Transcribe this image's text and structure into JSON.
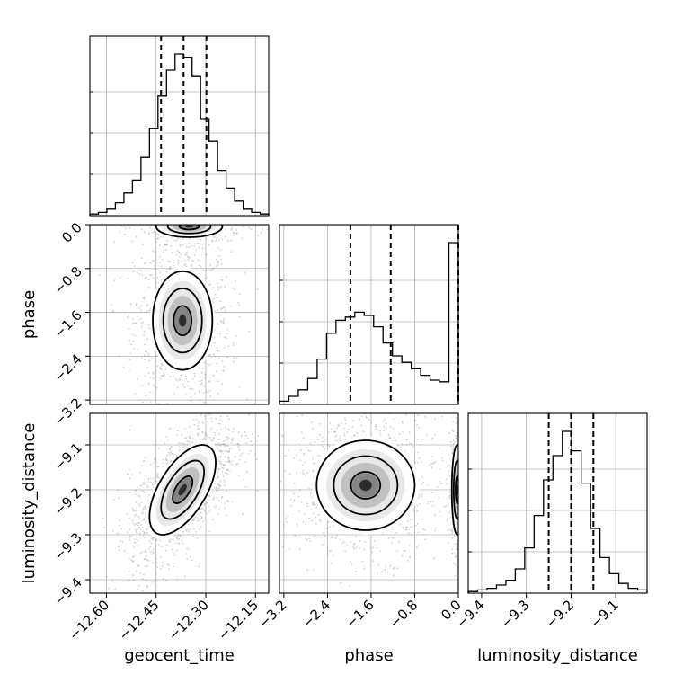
{
  "chart_data": {
    "type": "corner",
    "parameters": [
      "geocent_time",
      "phase",
      "luminosity_distance"
    ],
    "ranges": {
      "geocent_time": [
        -12.65,
        -12.11
      ],
      "phase": [
        -3.28,
        0.0
      ],
      "luminosity_distance": [
        -9.43,
        -9.03
      ]
    },
    "ticks": {
      "geocent_time": [
        "-12.60",
        "-12.45",
        "-12.30",
        "-12.15"
      ],
      "phase_x": [
        "-3.2",
        "-2.4",
        "-1.6",
        "-0.8",
        "0.0"
      ],
      "phase_y": [
        "0.0",
        "-0.8",
        "-1.6",
        "-2.4",
        "-3.2"
      ],
      "luminosity_distance_x": [
        "-9.4",
        "-9.3",
        "-9.2",
        "-9.1"
      ],
      "luminosity_distance_y": [
        "-9.1",
        "-9.2",
        "-9.3",
        "-9.4"
      ]
    },
    "tick_values": {
      "geocent_time": [
        -12.6,
        -12.45,
        -12.3,
        -12.15
      ],
      "phase": [
        -3.2,
        -2.4,
        -1.6,
        -0.8,
        0.0
      ],
      "luminosity_distance": [
        -9.4,
        -9.3,
        -9.2,
        -9.1
      ]
    },
    "quantiles": {
      "geocent_time": [
        -12.435,
        -12.367,
        -12.298
      ],
      "phase": [
        -1.98,
        -1.24,
        0.0
      ],
      "luminosity_distance": [
        -9.25,
        -9.2,
        -9.15
      ]
    },
    "histograms": {
      "geocent_time": [
        1,
        2,
        4,
        8,
        14,
        22,
        36,
        54,
        74,
        90,
        100,
        98,
        86,
        60,
        46,
        28,
        17,
        9,
        4,
        2,
        1
      ],
      "phase": [
        2,
        5,
        9,
        16,
        28,
        44,
        52,
        54,
        57,
        55,
        48,
        38,
        30,
        26,
        22,
        18,
        15,
        14,
        100
      ],
      "luminosity_distance": [
        1,
        2,
        3,
        5,
        8,
        15,
        28,
        48,
        70,
        85,
        100,
        88,
        68,
        40,
        22,
        12,
        6,
        3,
        2
      ]
    },
    "blobs": {
      "phase_vs_geocent_time": [
        {
          "x": -12.37,
          "y": -1.75,
          "sx": 0.045,
          "sy": 0.45,
          "w": 0.75
        },
        {
          "x": -12.35,
          "y": -0.03,
          "sx": 0.05,
          "sy": 0.1,
          "w": 0.25
        }
      ],
      "luminosity_distance_vs_geocent_time": [
        {
          "x": -12.37,
          "y": -9.2,
          "sx": 0.05,
          "sy": 0.05,
          "rho": 0.6,
          "w": 1.0
        }
      ],
      "luminosity_distance_vs_phase": [
        {
          "x": -1.7,
          "y": -9.19,
          "sx": 0.45,
          "sy": 0.05,
          "w": 0.75
        },
        {
          "x": -0.02,
          "y": -9.2,
          "sx": 0.05,
          "sy": 0.05,
          "w": 0.25
        }
      ]
    },
    "xlabel": [
      "geocent_time",
      "phase",
      "luminosity_distance"
    ],
    "ylabel": [
      "phase",
      "luminosity_distance"
    ]
  }
}
